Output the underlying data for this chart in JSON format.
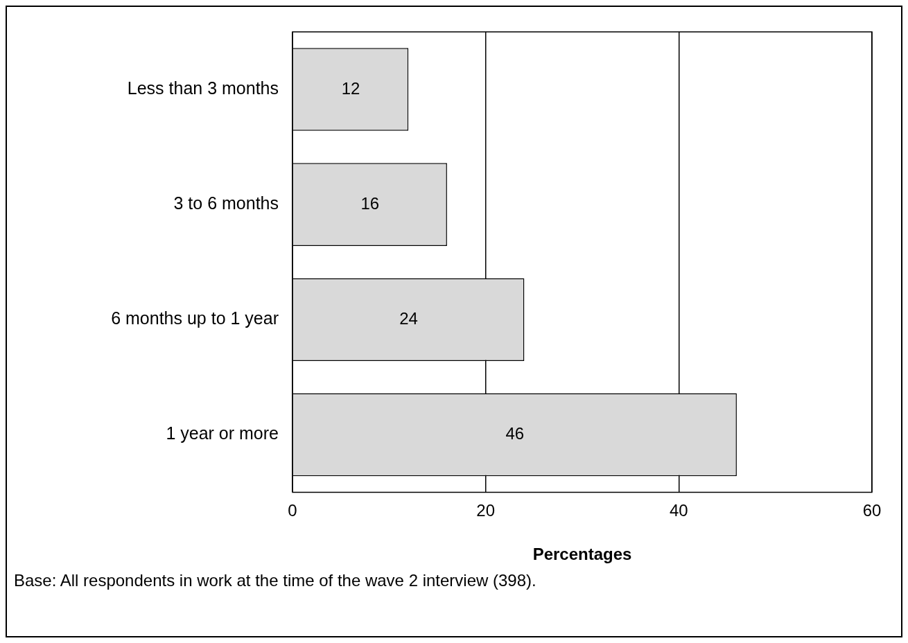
{
  "chart_data": {
    "type": "bar",
    "orientation": "horizontal",
    "xlabel": "Percentages",
    "categories": [
      "Less than 3 months",
      "3 to 6 months",
      "6 months up to 1 year",
      "1 year or more"
    ],
    "values": [
      12,
      16,
      24,
      46
    ],
    "color": "#d9d9d9",
    "xlim": [
      0,
      60
    ],
    "xticks": [
      0,
      20,
      40,
      60
    ],
    "grid": "x",
    "legend": false,
    "data_labels": true,
    "annotations": [
      "Base: All respondents in work at the time of the wave 2 interview (398)."
    ]
  }
}
